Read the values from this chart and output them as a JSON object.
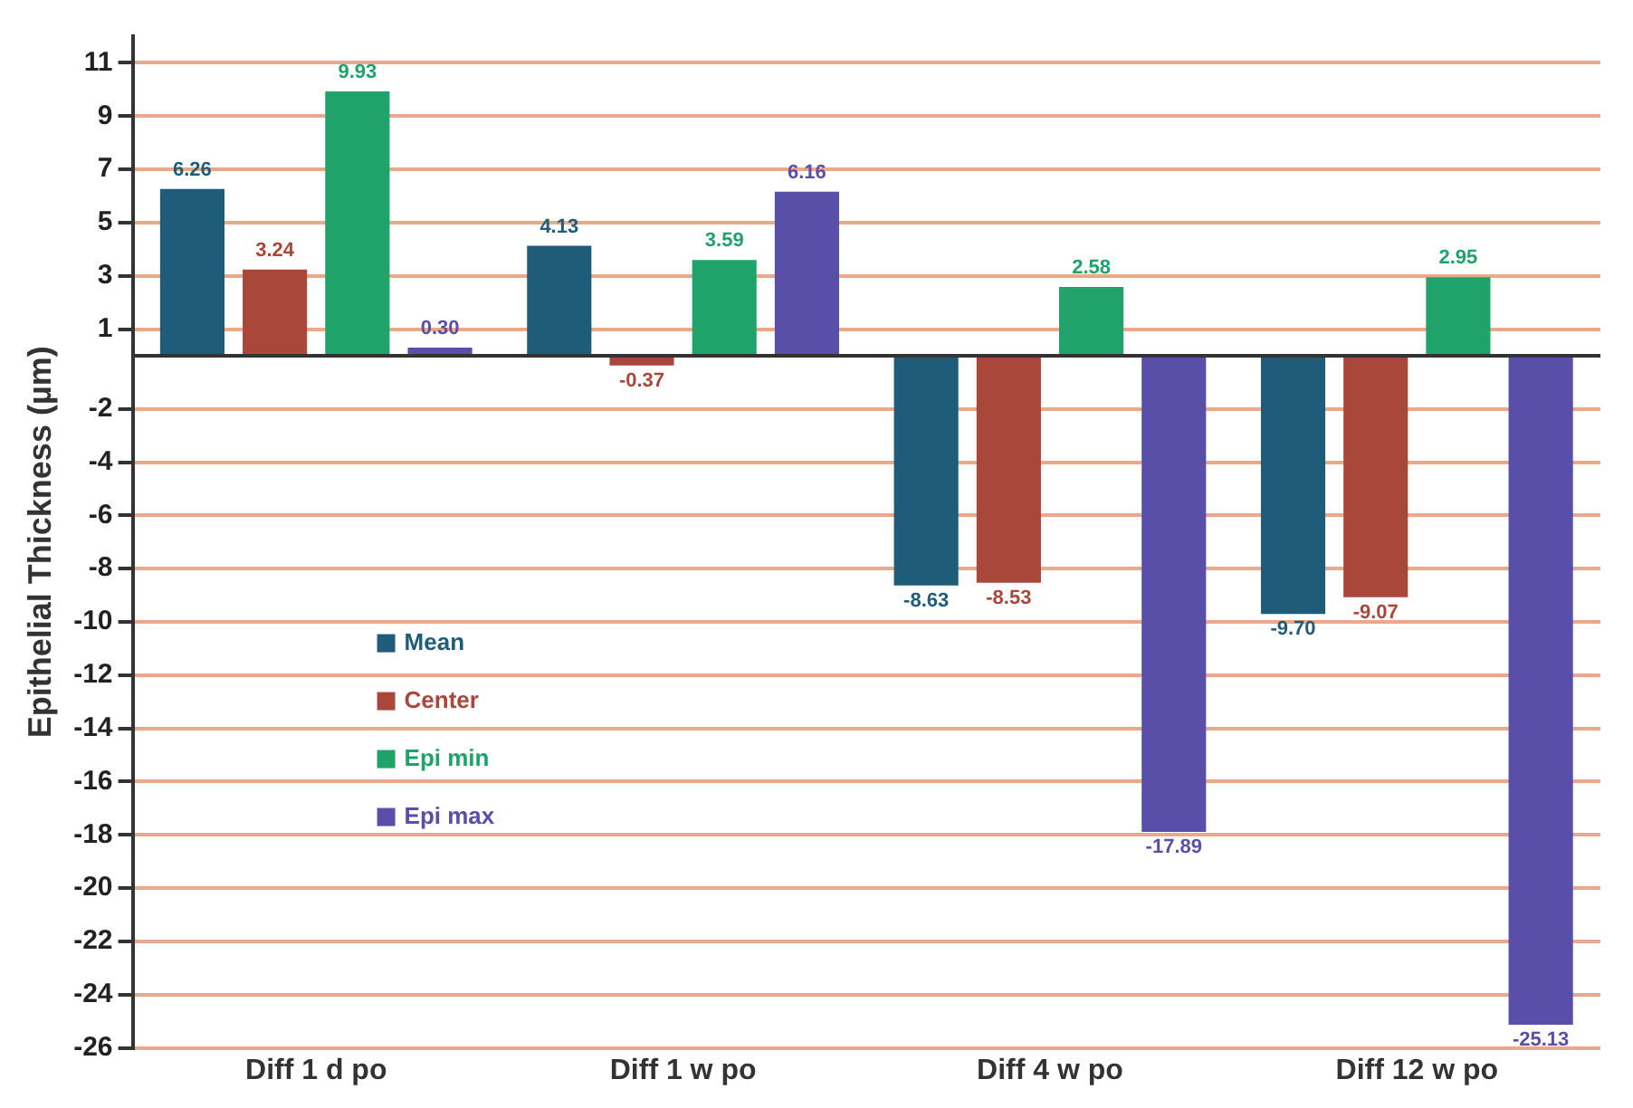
{
  "chart_data": {
    "type": "bar",
    "ylabel": "Epithelial Thickness (µm)",
    "categories": [
      "Diff 1 d po",
      "Diff 1 w po",
      "Diff 4 w po",
      "Diff 12 w po"
    ],
    "series": [
      {
        "name": "Mean",
        "color": "#1f5c7a",
        "values": [
          6.26,
          4.13,
          -8.63,
          -9.7
        ],
        "value_labels": [
          "6.26",
          "4.13",
          "-8.63",
          "-9.70"
        ]
      },
      {
        "name": "Center",
        "color": "#a9473a",
        "values": [
          3.24,
          -0.37,
          -8.53,
          -9.07
        ],
        "value_labels": [
          "3.24",
          "-0.37",
          "-8.53",
          "-9.07"
        ]
      },
      {
        "name": "Epi min",
        "color": "#1fa36b",
        "values": [
          9.93,
          3.59,
          2.58,
          2.95
        ],
        "value_labels": [
          "9.93",
          "3.59",
          "2.58",
          "2.95"
        ]
      },
      {
        "name": "Epi max",
        "color": "#5a4fa8",
        "values": [
          0.3,
          6.16,
          -17.89,
          -25.13
        ],
        "value_labels": [
          "0.30",
          "6.16",
          "-17.89",
          "-25.13"
        ]
      }
    ],
    "ylim": [
      -26,
      12
    ],
    "yticks": [
      11,
      9,
      7,
      5,
      3,
      1,
      -2,
      -4,
      -6,
      -8,
      -10,
      -12,
      -14,
      -16,
      -18,
      -20,
      -22,
      -24,
      -26
    ],
    "grid": "y",
    "legend": "bottom left"
  }
}
